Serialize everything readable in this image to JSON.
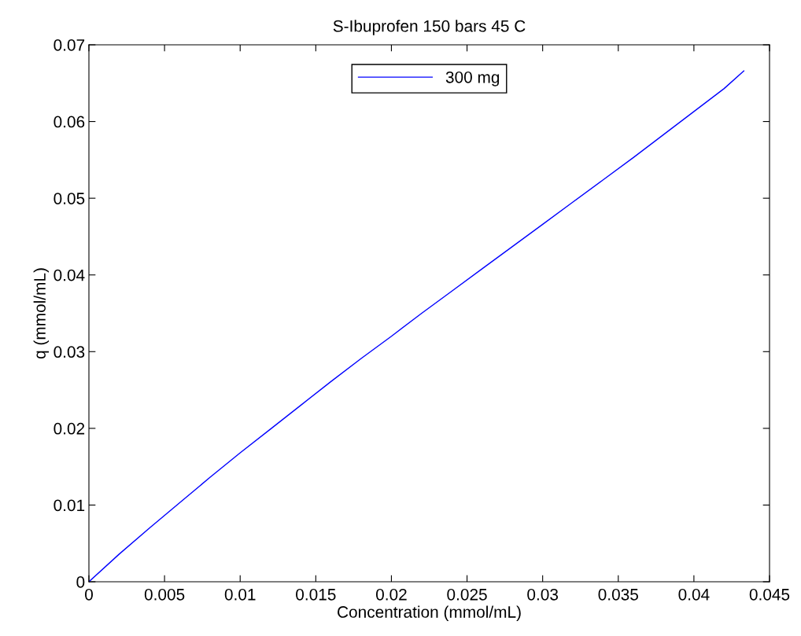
{
  "chart_data": {
    "type": "line",
    "title": "S-Ibuprofen 150 bars 45 C",
    "xlabel": "Concentration (mmol/mL)",
    "ylabel": "q (mmol/mL)",
    "series": [
      {
        "name": "300 mg",
        "color": "#0000ff",
        "x": [
          0,
          0.002,
          0.004,
          0.006,
          0.008,
          0.01,
          0.012,
          0.014,
          0.016,
          0.018,
          0.02,
          0.022,
          0.024,
          0.026,
          0.028,
          0.03,
          0.032,
          0.034,
          0.036,
          0.038,
          0.04,
          0.042,
          0.0433
        ],
        "values": [
          0,
          0.0036,
          0.007,
          0.0103,
          0.0136,
          0.0168,
          0.0199,
          0.023,
          0.0261,
          0.0291,
          0.032,
          0.035,
          0.0379,
          0.0408,
          0.0437,
          0.0466,
          0.0495,
          0.0524,
          0.0553,
          0.0583,
          0.0613,
          0.0643,
          0.0666
        ]
      }
    ],
    "xlim": [
      0,
      0.045
    ],
    "xticks": [
      0,
      0.005,
      0.01,
      0.015,
      0.02,
      0.025,
      0.03,
      0.035,
      0.04,
      0.045
    ],
    "ylim": [
      0,
      0.07
    ],
    "yticks": [
      0,
      0.01,
      0.02,
      0.03,
      0.04,
      0.05,
      0.06,
      0.07
    ],
    "grid": false,
    "legend": "top",
    "marker": "none",
    "line_style": "solid"
  }
}
